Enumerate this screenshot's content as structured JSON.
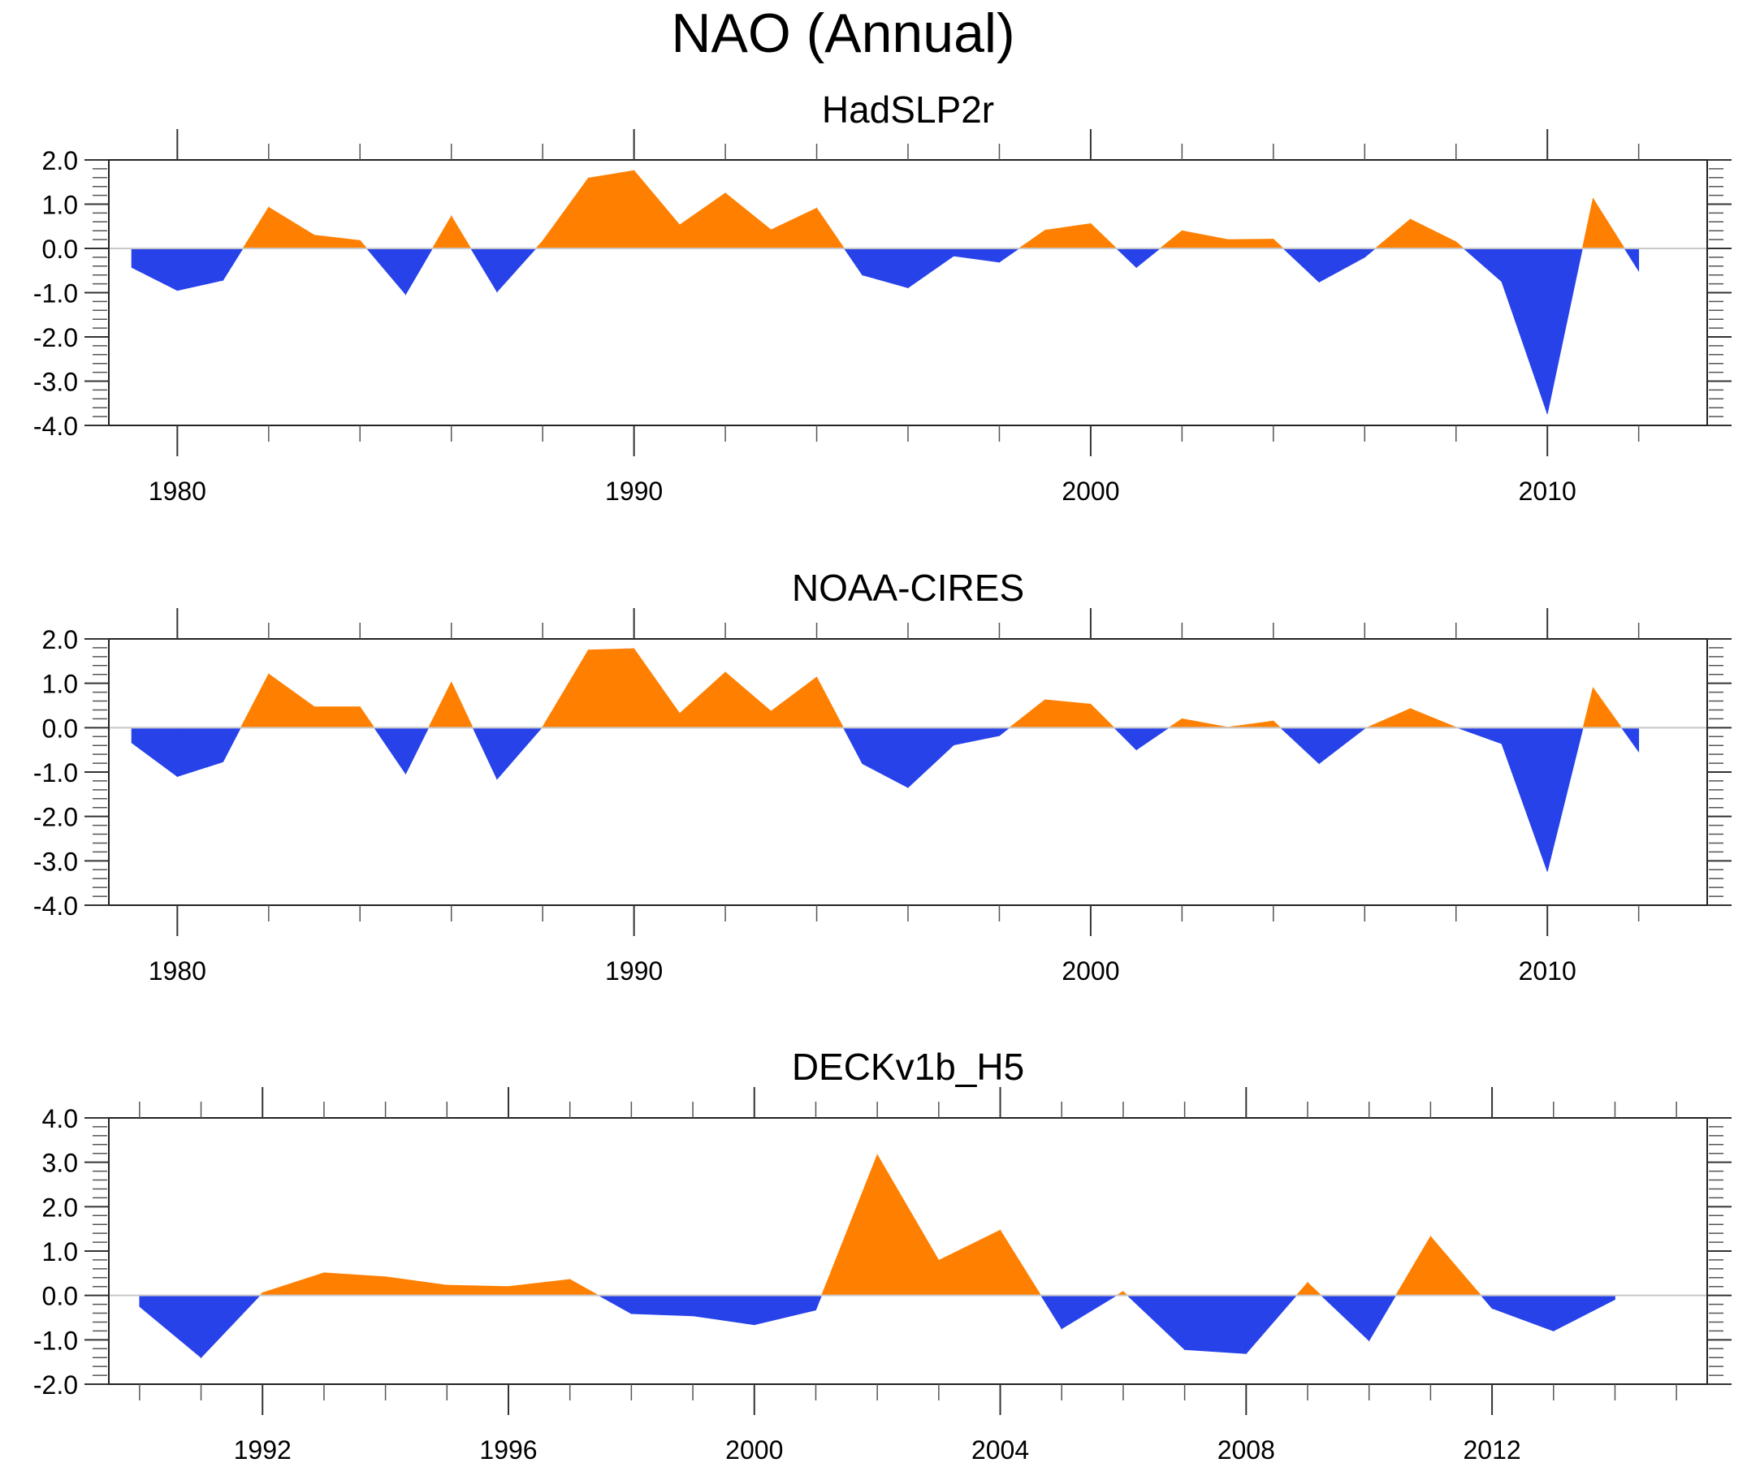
{
  "title": "NAO (Annual)",
  "colors": {
    "positive": "#FF8000",
    "negative": "#2842EA"
  },
  "chart_data": [
    {
      "type": "area",
      "title": "HadSLP2r",
      "xlabel": "",
      "ylabel": "",
      "xlim": [
        1978.5,
        2013.5
      ],
      "ylim": [
        -4.0,
        2.0
      ],
      "x_major_ticks": [
        1980,
        1990,
        2000,
        2010
      ],
      "x_tick_labels": [
        "1980",
        "1990",
        "2000",
        "2010"
      ],
      "x_minor_step": 2,
      "y_ticks": [
        2.0,
        1.0,
        0.0,
        -1.0,
        -2.0,
        -3.0,
        -4.0
      ],
      "y_tick_labels": [
        "2.0",
        "1.0",
        "0.0",
        "-1.0",
        "-2.0",
        "-3.0",
        "-4.0"
      ],
      "y_minor_step": 0.2,
      "grid": false,
      "reference_line": 0.0,
      "x": [
        1979,
        1980,
        1981,
        1982,
        1983,
        1984,
        1985,
        1986,
        1987,
        1988,
        1989,
        1990,
        1991,
        1992,
        1993,
        1994,
        1995,
        1996,
        1997,
        1998,
        1999,
        2000,
        2001,
        2002,
        2003,
        2004,
        2005,
        2006,
        2007,
        2008,
        2009,
        2010,
        2011,
        2012
      ],
      "values": [
        -0.43,
        -0.95,
        -0.72,
        0.93,
        0.3,
        0.18,
        -1.04,
        0.73,
        -0.98,
        0.17,
        1.59,
        1.76,
        0.53,
        1.25,
        0.42,
        0.91,
        -0.6,
        -0.89,
        -0.17,
        -0.31,
        0.41,
        0.56,
        -0.43,
        0.4,
        0.2,
        0.21,
        -0.76,
        -0.2,
        0.66,
        0.15,
        -0.75,
        -3.74,
        1.13,
        -0.51
      ]
    },
    {
      "type": "area",
      "title": "NOAA-CIRES",
      "xlabel": "",
      "ylabel": "",
      "xlim": [
        1978.5,
        2013.5
      ],
      "ylim": [
        -4.0,
        2.0
      ],
      "x_major_ticks": [
        1980,
        1990,
        2000,
        2010
      ],
      "x_tick_labels": [
        "1980",
        "1990",
        "2000",
        "2010"
      ],
      "x_minor_step": 2,
      "y_ticks": [
        2.0,
        1.0,
        0.0,
        -1.0,
        -2.0,
        -3.0,
        -4.0
      ],
      "y_tick_labels": [
        "2.0",
        "1.0",
        "0.0",
        "-1.0",
        "-2.0",
        "-3.0",
        "-4.0"
      ],
      "y_minor_step": 0.2,
      "grid": false,
      "reference_line": 0.0,
      "x": [
        1979,
        1980,
        1981,
        1982,
        1983,
        1984,
        1985,
        1986,
        1987,
        1988,
        1989,
        1990,
        1991,
        1992,
        1993,
        1994,
        1995,
        1996,
        1997,
        1998,
        1999,
        2000,
        2001,
        2002,
        2003,
        2004,
        2005,
        2006,
        2007,
        2008,
        2009,
        2010,
        2011,
        2012
      ],
      "values": [
        -0.34,
        -1.1,
        -0.77,
        1.21,
        0.47,
        0.47,
        -1.04,
        1.03,
        -1.16,
        0.02,
        1.75,
        1.78,
        0.32,
        1.25,
        0.37,
        1.14,
        -0.81,
        -1.35,
        -0.39,
        -0.18,
        0.63,
        0.53,
        -0.5,
        0.2,
        0.01,
        0.15,
        -0.81,
        -0.02,
        0.43,
        0.01,
        -0.36,
        -3.24,
        0.9,
        -0.54
      ]
    },
    {
      "type": "area",
      "title": "DECKv1b_H5",
      "xlabel": "",
      "ylabel": "",
      "xlim": [
        1989.5,
        2015.5
      ],
      "ylim": [
        -2.0,
        4.0
      ],
      "x_major_ticks": [
        1992,
        1996,
        2000,
        2004,
        2008,
        2012
      ],
      "x_tick_labels": [
        "1992",
        "1996",
        "2000",
        "2004",
        "2008",
        "2012"
      ],
      "x_minor_step": 1,
      "y_ticks": [
        4.0,
        3.0,
        2.0,
        1.0,
        0.0,
        -1.0,
        -2.0
      ],
      "y_tick_labels": [
        "4.0",
        "3.0",
        "2.0",
        "1.0",
        "0.0",
        "-1.0",
        "-2.0"
      ],
      "y_minor_step": 0.2,
      "grid": false,
      "reference_line": 0.0,
      "x": [
        1990,
        1991,
        1992,
        1993,
        1994,
        1995,
        1996,
        1997,
        1998,
        1999,
        2000,
        2001,
        2002,
        2003,
        2004,
        2005,
        2006,
        2007,
        2008,
        2009,
        2010,
        2011,
        2012,
        2013,
        2014
      ],
      "values": [
        -0.25,
        -1.4,
        0.06,
        0.51,
        0.42,
        0.23,
        0.2,
        0.36,
        -0.41,
        -0.46,
        -0.66,
        -0.33,
        3.17,
        0.79,
        1.47,
        -0.75,
        0.09,
        -1.22,
        -1.31,
        0.29,
        -1.02,
        1.33,
        -0.29,
        -0.8,
        -0.09
      ]
    }
  ]
}
